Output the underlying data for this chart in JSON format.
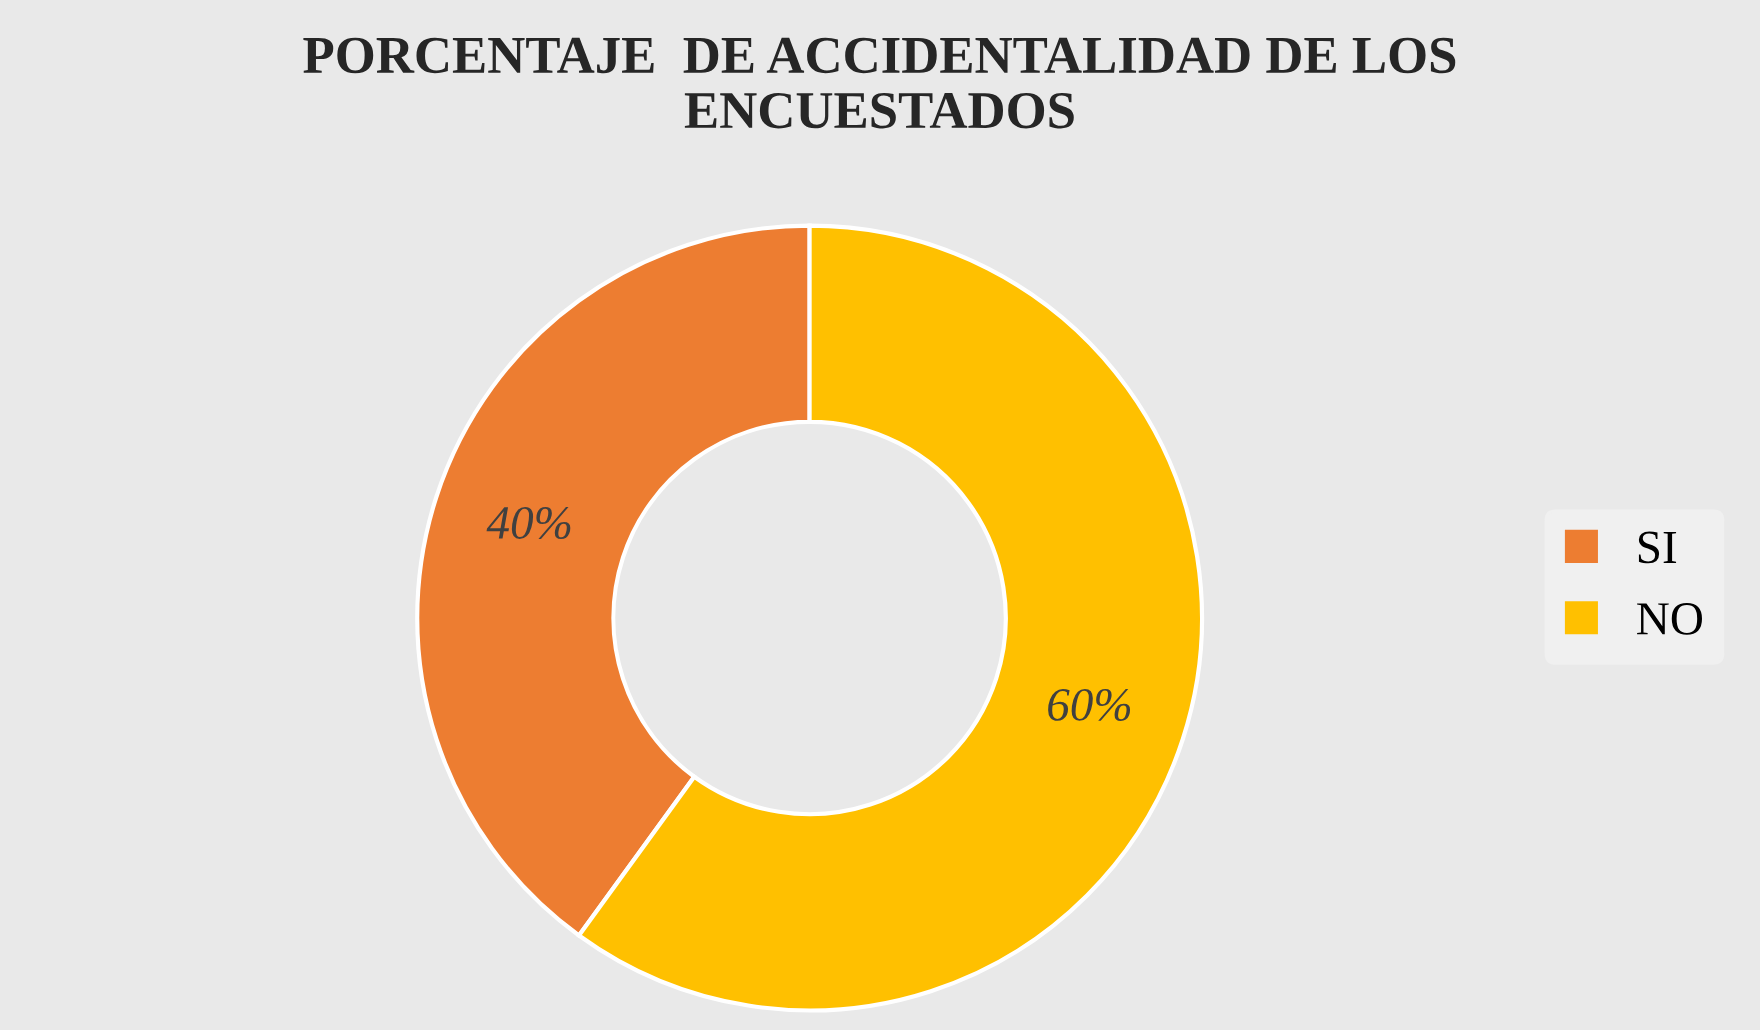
{
  "chart_data": {
    "type": "donut",
    "title": "PORCENTAJE  DE ACCIDENTALIDAD DE LOS ENCUESTADOS",
    "categories": [
      "SI",
      "NO"
    ],
    "values": [
      40,
      60
    ],
    "colors": [
      "#ed7d31",
      "#ffc000"
    ],
    "value_labels": [
      "40%",
      "60%"
    ],
    "legend": "right"
  }
}
